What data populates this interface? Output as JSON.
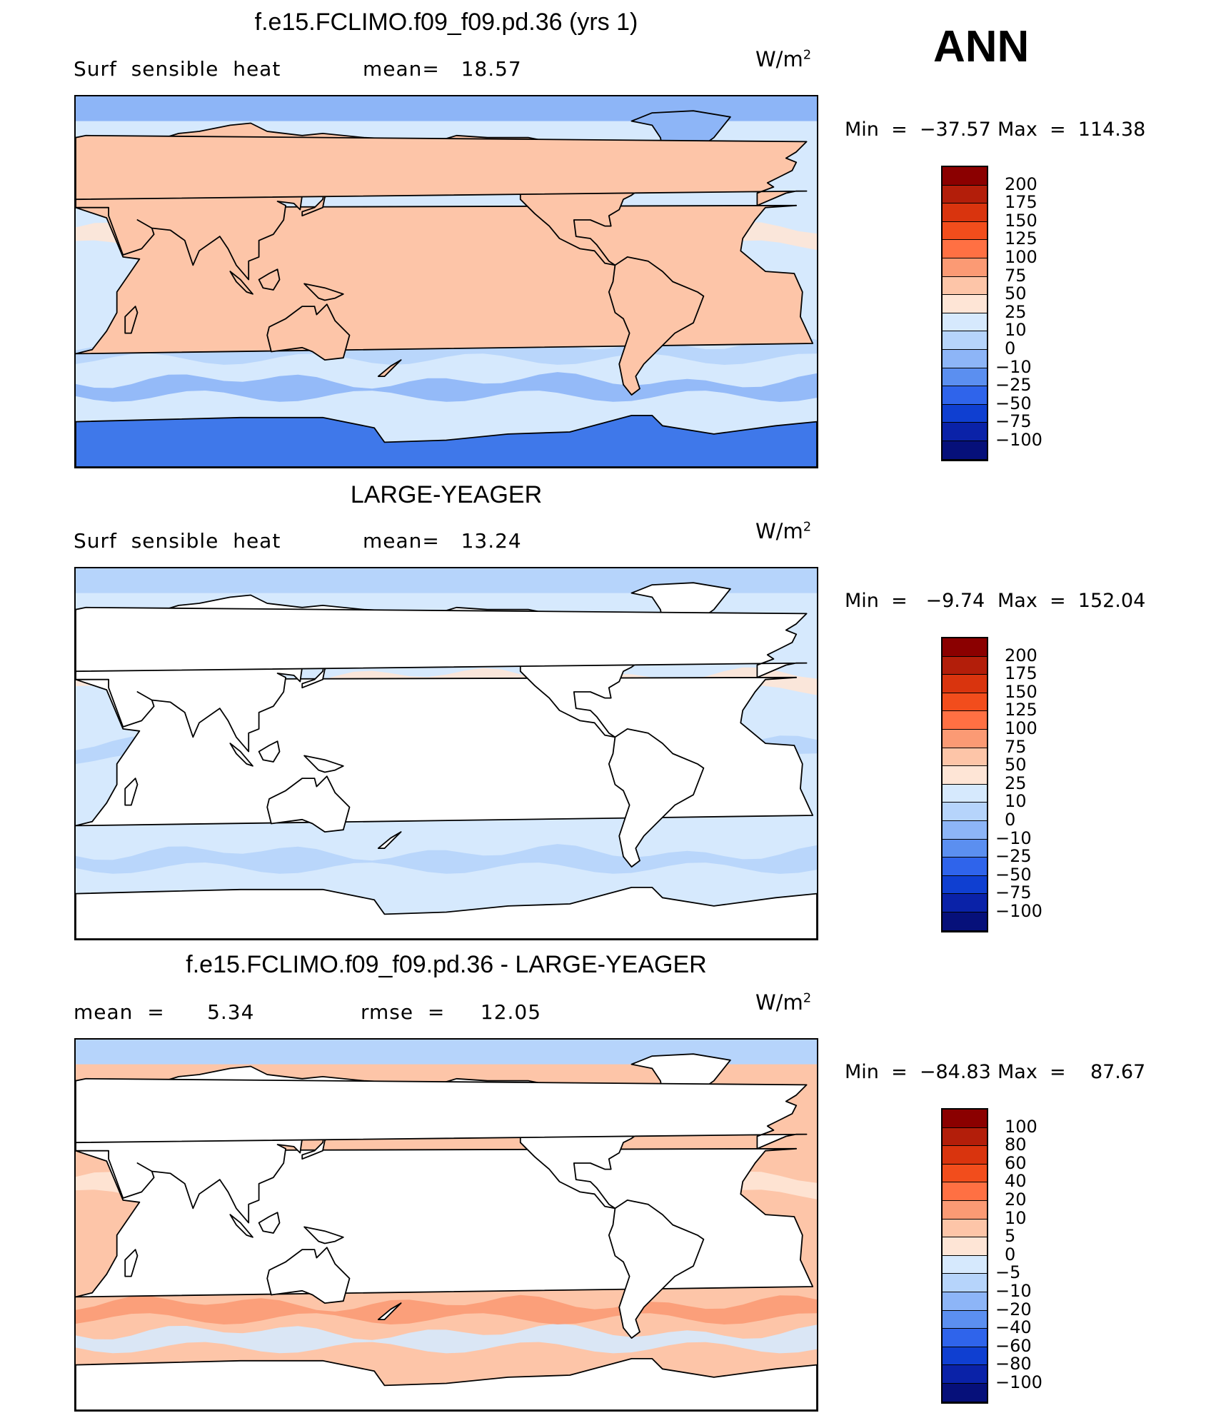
{
  "season": "ANN",
  "chart_data": [
    {
      "type": "heatmap",
      "title": "f.e15.FCLIMO.f09_f09.pd.36 (yrs 1)",
      "left_text": "Surf  sensible  heat",
      "center_text": "mean=   18.57",
      "units_base": "W/m",
      "units_exp": "2",
      "min_text": "Min  =  −37.57",
      "max_text": "Max  =  114.38",
      "min": -37.57,
      "max": 114.38,
      "mean": 18.57,
      "levels": [
        "200",
        "175",
        "150",
        "125",
        "100",
        "75",
        "50",
        "25",
        "10",
        "0",
        "−10",
        "−25",
        "−50",
        "−75",
        "−100"
      ],
      "colors": [
        "#8b0000",
        "#b31e0a",
        "#d9340e",
        "#f24d1c",
        "#ff7043",
        "#fb9a74",
        "#fdc5a8",
        "#fee5d6",
        "#d6e9fd",
        "#b6d4fb",
        "#8db5f7",
        "#5b8ff0",
        "#2f64eb",
        "#0f3fd1",
        "#0a22a8",
        "#06107a"
      ],
      "ocean_color": "#d6e9fd",
      "land_color": "#fdc5a8",
      "polar_color": "#8db5f7",
      "antarctic_color": "#3f78ea",
      "zonal_bands": [
        {
          "lat": -48,
          "color": "#8db5f7"
        },
        {
          "lat": -30,
          "color": "#b6d4fb"
        },
        {
          "lat": 25,
          "color": "#fee5d6"
        }
      ]
    },
    {
      "type": "heatmap",
      "title": "LARGE-YEAGER",
      "left_text": "Surf  sensible  heat",
      "center_text": "mean=   13.24",
      "units_base": "W/m",
      "units_exp": "2",
      "min_text": "Min  =   −9.74",
      "max_text": "Max  =  152.04",
      "min": -9.74,
      "max": 152.04,
      "mean": 13.24,
      "levels": [
        "200",
        "175",
        "150",
        "125",
        "100",
        "75",
        "50",
        "25",
        "10",
        "0",
        "−10",
        "−25",
        "−50",
        "−75",
        "−100"
      ],
      "colors": [
        "#8b0000",
        "#b31e0a",
        "#d9340e",
        "#f24d1c",
        "#ff7043",
        "#fb9a74",
        "#fdc5a8",
        "#fee5d6",
        "#d6e9fd",
        "#b6d4fb",
        "#8db5f7",
        "#5b8ff0",
        "#2f64eb",
        "#0f3fd1",
        "#0a22a8",
        "#06107a"
      ],
      "ocean_color": "#d6e9fd",
      "land_color": "#ffffff",
      "polar_color": "#b6d4fb",
      "antarctic_color": "#ffffff",
      "zonal_bands": [
        {
          "lat": -48,
          "color": "#b6d4fb"
        },
        {
          "lat": 5,
          "color": "#b6d4fb"
        },
        {
          "lat": 38,
          "color": "#fee5d6"
        }
      ]
    },
    {
      "type": "heatmap",
      "title": "f.e15.FCLIMO.f09_f09.pd.36 - LARGE-YEAGER",
      "left_text": "mean  =      5.34",
      "center_text": "rmse  =     12.05",
      "units_base": "W/m",
      "units_exp": "2",
      "min_text": "Min  =  −84.83",
      "max_text": "Max  =    87.67",
      "min": -84.83,
      "max": 87.67,
      "mean": 5.34,
      "rmse": 12.05,
      "levels": [
        "100",
        "80",
        "60",
        "40",
        "20",
        "10",
        "5",
        "0",
        "−5",
        "−10",
        "−20",
        "−40",
        "−60",
        "−80",
        "−100"
      ],
      "colors": [
        "#8b0000",
        "#b31e0a",
        "#d9340e",
        "#f24d1c",
        "#ff7043",
        "#fb9a74",
        "#fdc5a8",
        "#fee5d6",
        "#d6e9fd",
        "#b6d4fb",
        "#8db5f7",
        "#5b8ff0",
        "#2f64eb",
        "#0f3fd1",
        "#0a22a8",
        "#06107a"
      ],
      "ocean_color": "#fdc5a8",
      "land_color": "#ffffff",
      "polar_color": "#b6d4fb",
      "antarctic_color": "#ffffff",
      "zonal_bands": [
        {
          "lat": -52,
          "color": "#d6e9fd"
        },
        {
          "lat": -38,
          "color": "#fb9a74"
        },
        {
          "lat": 22,
          "color": "#fee5d6"
        }
      ]
    }
  ]
}
